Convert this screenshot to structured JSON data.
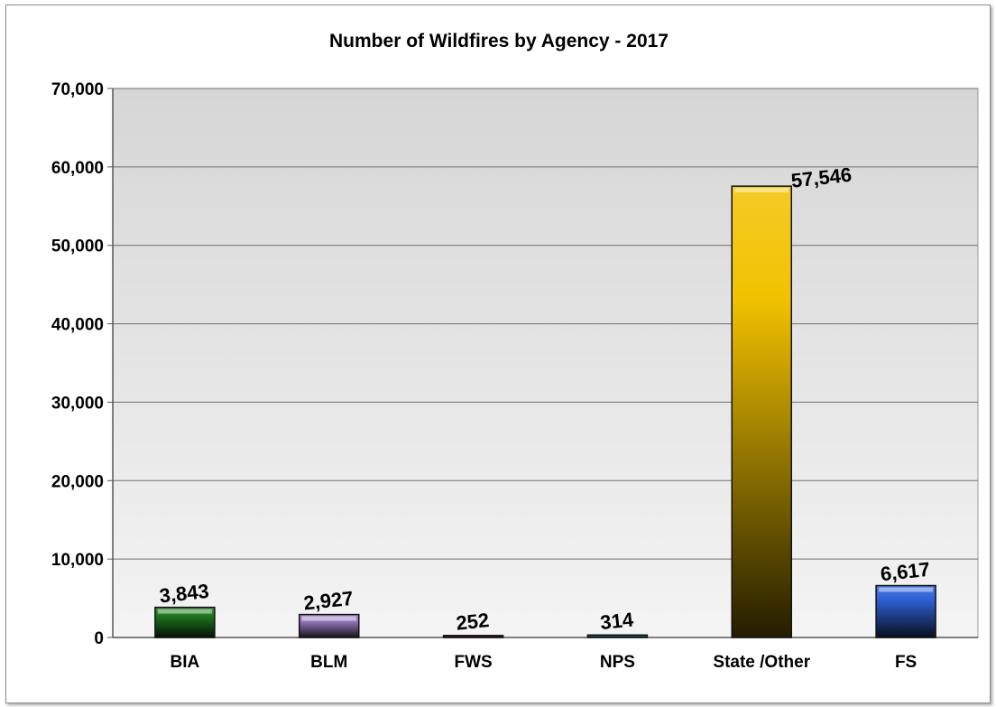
{
  "chart_data": {
    "type": "bar",
    "title": "Number of Wildfires by Agency -  2017",
    "xlabel": "",
    "ylabel": "",
    "categories": [
      "BIA",
      "BLM",
      "FWS",
      "NPS",
      "State /Other",
      "FS"
    ],
    "values": [
      3843,
      2927,
      252,
      314,
      57546,
      6617
    ],
    "data_labels": [
      "3,843",
      "2,927",
      "252",
      "314",
      "57,546",
      "6,617"
    ],
    "ylim": [
      0,
      70000
    ],
    "yticks": [
      0,
      10000,
      20000,
      30000,
      40000,
      50000,
      60000,
      70000
    ],
    "ytick_labels": [
      "0",
      "10,000",
      "20,000",
      "30,000",
      "40,000",
      "50,000",
      "60,000",
      "70,000"
    ],
    "grid": true,
    "legend": "none",
    "colors": [
      "#1f7a1f",
      "#9a7ec4",
      "#7a1e12",
      "#1f6e6a",
      "#f2c200",
      "#2f62d8"
    ],
    "plot_background": "#dcdcdc"
  }
}
